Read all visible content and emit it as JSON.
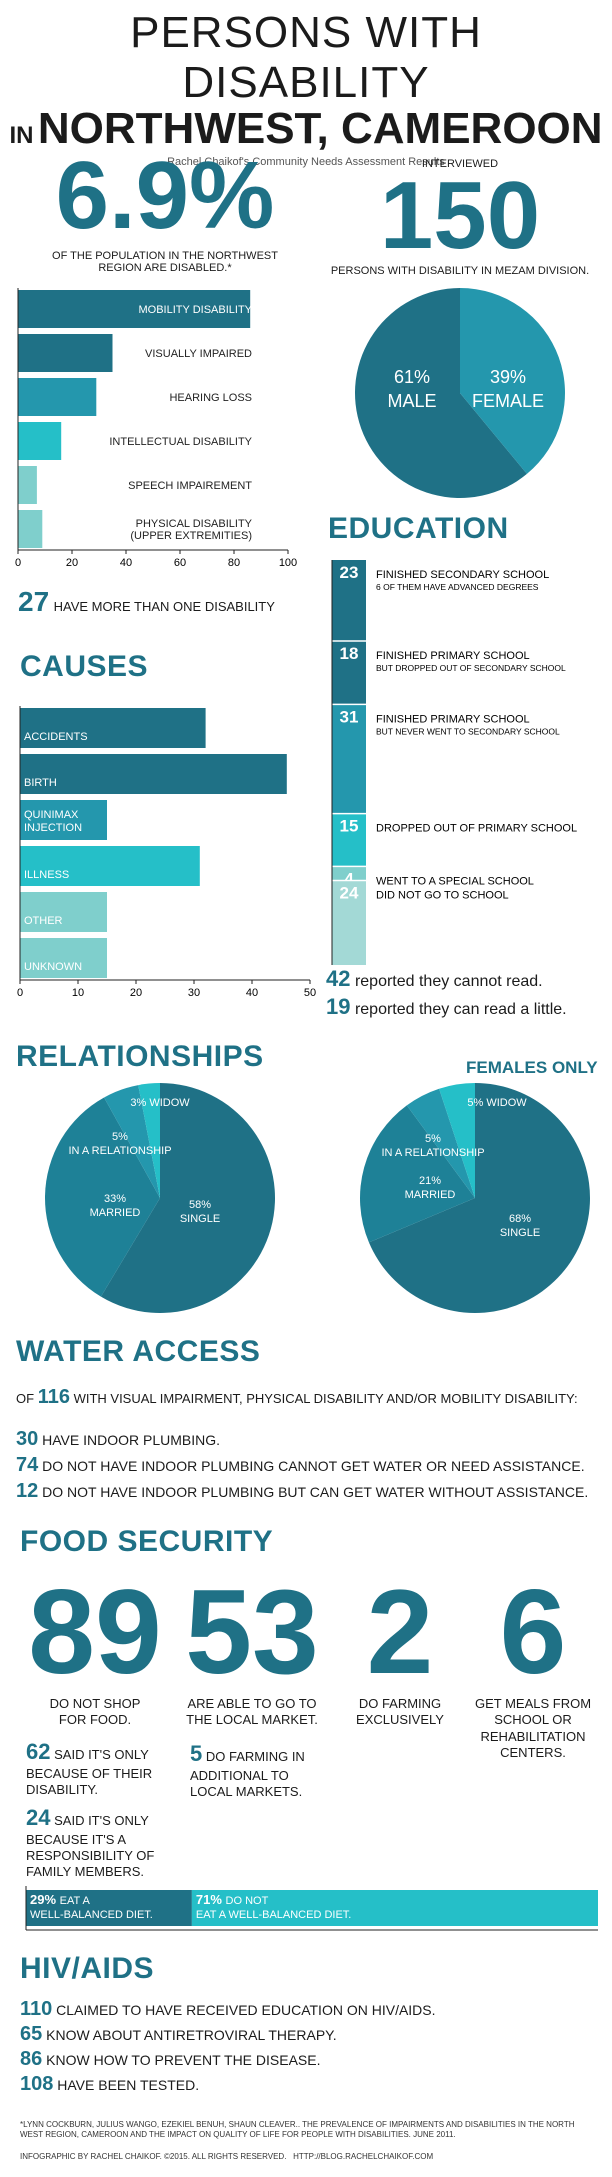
{
  "header": {
    "title_line1": "PERSONS WITH DISABILITY",
    "title_in": "IN",
    "title_line2": "NORTHWEST, CAMEROON",
    "subtitle": "Rachel Chaikof's Community Needs Assessment Results"
  },
  "population": {
    "percent": "6.9%",
    "caption": "OF THE POPULATION IN THE NORTHWEST REGION ARE DISABLED.*"
  },
  "interviewed": {
    "label": "INTERVIEWED",
    "number": "150",
    "caption": "PERSONS WITH DISABILITY IN MEZAM DIVISION."
  },
  "more_than_one": {
    "number": "27",
    "text": "HAVE MORE THAN ONE DISABILITY"
  },
  "reading": [
    {
      "number": "42",
      "text": "reported they cannot read."
    },
    {
      "number": "19",
      "text": "reported they can read a little."
    }
  ],
  "sections": {
    "education": "EDUCATION",
    "causes": "CAUSES",
    "relationships": "RELATIONSHIPS",
    "females_only": "FEMALES ONLY",
    "water": "WATER ACCESS",
    "food": "FOOD SECURITY",
    "hiv": "HIV/AIDS"
  },
  "water": {
    "intro_pre": "OF",
    "intro_number": "116",
    "intro_post": "WITH VISUAL IMPAIRMENT, PHYSICAL DISABILITY AND/OR MOBILITY DISABILITY:",
    "items": [
      {
        "number": "30",
        "text": "HAVE INDOOR PLUMBING."
      },
      {
        "number": "74",
        "text": "DO NOT HAVE INDOOR PLUMBING CANNOT GET WATER OR NEED ASSISTANCE."
      },
      {
        "number": "12",
        "text": "DO NOT HAVE INDOOR PLUMBING BUT CAN GET WATER WITHOUT ASSISTANCE."
      }
    ]
  },
  "food": {
    "big": [
      {
        "number": "89",
        "text": "DO NOT SHOP FOR FOOD."
      },
      {
        "number": "53",
        "text": "ARE ABLE TO GO TO THE LOCAL MARKET."
      },
      {
        "number": "2",
        "text": "DO FARMING EXCLUSIVELY"
      },
      {
        "number": "6",
        "text": "GET MEALS FROM SCHOOL OR REHABILITATION CENTERS."
      }
    ],
    "sub": [
      {
        "number": "62",
        "text": "SAID IT'S ONLY BECAUSE OF THEIR DISABILITY."
      },
      {
        "number": "24",
        "text": "SAID IT'S ONLY BECAUSE IT'S A RESPONSIBILITY OF FAMILY MEMBERS."
      },
      {
        "number": "5",
        "text": "DO FARMING IN ADDITIONAL TO LOCAL MARKETS."
      }
    ]
  },
  "hiv": {
    "items": [
      {
        "number": "110",
        "text": "CLAIMED TO HAVE RECEIVED EDUCATION ON HIV/AIDS."
      },
      {
        "number": "65",
        "text": "KNOW ABOUT ANTIRETROVIRAL THERAPY."
      },
      {
        "number": "86",
        "text": "KNOW HOW TO PREVENT THE DISEASE."
      },
      {
        "number": "108",
        "text": "HAVE BEEN TESTED."
      }
    ]
  },
  "footnote": "*LYNN COCKBURN, JULIUS WANGO, EZEKIEL BENUH, SHAUN CLEAVER.. THE PREVALENCE OF IMPAIRMENTS AND DISABILITIES IN THE NORTH WEST REGION, CAMEROON AND THE IMPACT ON QUALITY OF LIFE FOR PEOPLE WITH DISABILITIES. JUNE 2011.",
  "credit": "INFOGRAPHIC BY RACHEL CHAIKOF. ©2015. ALL RIGHTS RESERVED.   HTTP://BLOG.RACHELCHAIKOF.COM",
  "colors": {
    "dark": "#1f7186",
    "mid": "#2497ad",
    "bright": "#25bfc8",
    "light": "#7fcfcc",
    "pale": "#a3d9d6"
  },
  "chart_data": [
    {
      "type": "bar",
      "orientation": "horizontal",
      "categories": [
        "MOBILITY DISABILITY",
        "VISUALLY IMPAIRED",
        "HEARING LOSS",
        "INTELLECTUAL DISABILITY",
        "SPEECH IMPAIREMENT",
        "PHYSICAL DISABILITY (UPPER EXTREMITIES)"
      ],
      "values": [
        86,
        35,
        29,
        16,
        7,
        9
      ],
      "xlim": [
        0,
        100
      ],
      "ticks": [
        0,
        20,
        40,
        60,
        80,
        100
      ]
    },
    {
      "type": "pie",
      "labels": [
        "MALE",
        "FEMALE"
      ],
      "values": [
        61,
        39
      ]
    },
    {
      "type": "bar",
      "orientation": "stacked-vertical",
      "categories": [
        "FINISHED SECONDARY SCHOOL",
        "FINISHED PRIMARY SCHOOL",
        "FINISHED PRIMARY SCHOOL",
        "DROPPED OUT OF PRIMARY SCHOOL",
        "WENT TO A SPECIAL SCHOOL",
        "DID NOT GO TO SCHOOL"
      ],
      "notes": [
        "6 OF THEM HAVE ADVANCED DEGREES",
        "BUT DROPPED OUT OF SECONDARY SCHOOL",
        "BUT NEVER WENT TO SECONDARY SCHOOL",
        "",
        "",
        ""
      ],
      "values": [
        23,
        18,
        31,
        15,
        4,
        24
      ]
    },
    {
      "type": "bar",
      "orientation": "horizontal",
      "categories": [
        "ACCIDENTS",
        "BIRTH",
        "QUINIMAX INJECTION",
        "ILLNESS",
        "OTHER",
        "UNKNOWN"
      ],
      "values": [
        32,
        46,
        15,
        31,
        15,
        15
      ],
      "xlim": [
        0,
        50
      ],
      "ticks": [
        0,
        10,
        20,
        30,
        40,
        50
      ]
    },
    {
      "type": "pie",
      "labels": [
        "SINGLE",
        "MARRIED",
        "IN A RELATIONSHIP",
        "WIDOW"
      ],
      "values": [
        58,
        33,
        5,
        3
      ],
      "display": [
        "58%",
        "33%",
        "5%",
        "3%"
      ]
    },
    {
      "type": "pie",
      "labels": [
        "SINGLE",
        "MARRIED",
        "IN A RELATIONSHIP",
        "WIDOW"
      ],
      "values": [
        68,
        21,
        5,
        5
      ],
      "display": [
        "68%",
        "21%",
        "5%",
        "5%"
      ]
    },
    {
      "type": "bar",
      "orientation": "stacked-horizontal",
      "segments": [
        {
          "value": 29,
          "label": "29%",
          "text": "EAT A WELL-BALANCED DIET."
        },
        {
          "value": 71,
          "label": "71%",
          "text": "DO NOT EAT A WELL-BALANCED DIET."
        }
      ]
    }
  ]
}
